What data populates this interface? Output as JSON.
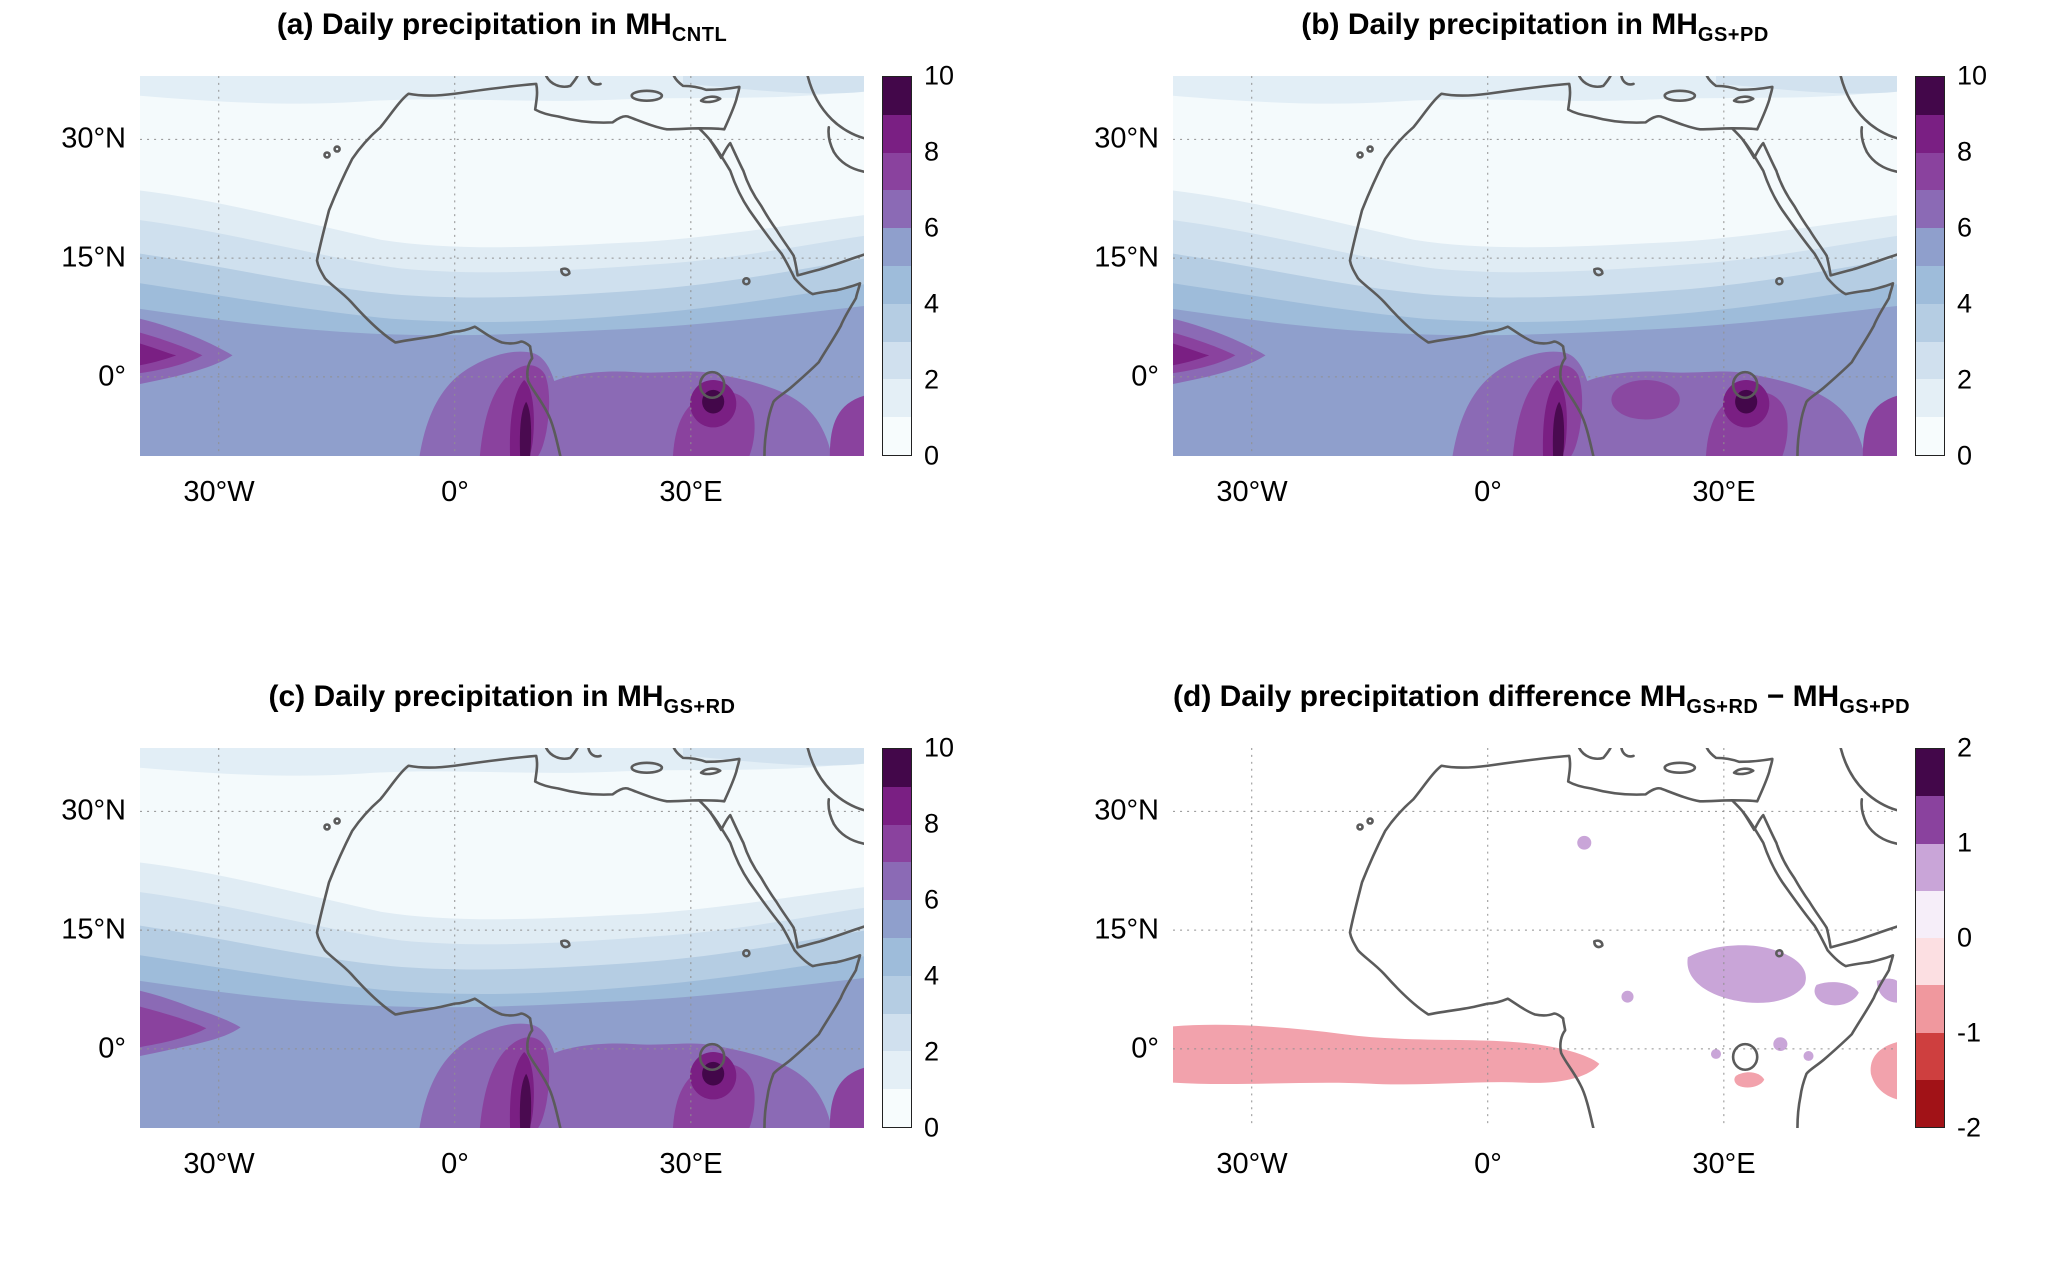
{
  "figure": {
    "background": "#ffffff"
  },
  "axes": {
    "lat_tick_labels": [
      "30°N",
      "15°N",
      "0°"
    ],
    "lon_tick_labels": [
      "30°W",
      "0°",
      "30°E"
    ]
  },
  "panels": {
    "a": {
      "title_main": "(a) Daily precipitation in MH",
      "title_sub": "CNTL"
    },
    "b": {
      "title_main": "(b) Daily precipitation in MH",
      "title_sub": "GS+PD"
    },
    "c": {
      "title_main": "(c) Daily precipitation in MH",
      "title_sub": "GS+RD"
    },
    "d": {
      "title_main": "(d) Daily precipitation difference MH",
      "title_sub": "GS+RD",
      "title_main2": " − MH",
      "title_sub2": "GS+PD"
    }
  },
  "colorbars": {
    "precip": {
      "tick_labels": [
        "0",
        "2",
        "4",
        "6",
        "8",
        "10"
      ],
      "range": [
        0,
        10
      ]
    },
    "diff": {
      "tick_labels": [
        "-2",
        "-1",
        "0",
        "1",
        "2"
      ],
      "range": [
        -2,
        2
      ]
    }
  },
  "colormaps": {
    "precip": [
      "#f7fcfd",
      "#e4eff6",
      "#d0e0ee",
      "#b5cde3",
      "#9ebcda",
      "#8f9fcc",
      "#8b6ab5",
      "#8a429e",
      "#7a1f83",
      "#43074a"
    ],
    "diff": [
      "#a11217",
      "#ce3f3f",
      "#f0989e",
      "#fcdfe2",
      "#f6eef9",
      "#c9a5d8",
      "#8a429e",
      "#43074a"
    ]
  },
  "map_style": {
    "coast_color": "#5b5b5b",
    "grid_color": "#909090"
  },
  "chart_data": [
    {
      "type": "heatmap",
      "panel": "a",
      "title": "(a) Daily precipitation in MH_CNTL",
      "x_ticks": [
        "30°W",
        "0°",
        "30°E"
      ],
      "y_ticks": [
        "30°N",
        "15°N",
        "0°"
      ],
      "approx_extent": {
        "lon": [
          -40,
          52
        ],
        "lat": [
          -10,
          38
        ]
      },
      "colorbar_range": [
        0,
        10
      ],
      "colorbar_ticks": [
        0,
        2,
        4,
        6,
        8,
        10
      ],
      "color_levels": [
        0,
        1,
        2,
        3,
        4,
        5,
        6,
        7,
        8,
        9,
        10
      ],
      "grid": "dotted at 0°, 15°N, 30°N and 30°W, 0°, 30°E",
      "features": [
        "values <1 over the Sahara, Mediterranean and subtropics north of ~18°N",
        "1–4 gradient southward across the Sahel (~8–18°N)",
        "4–6 band near 4–8°N from the Atlantic across West Africa",
        "6–10 maximum along the Gulf of Guinea coast near Cameroon (~10°E)",
        "8–10 maximum around Lake Victoria (~33°E, 0°)",
        "6–8 wedge at the western map edge near 2–7°N (Atlantic ITCZ)",
        "4–8 zonal band south of the equator"
      ]
    },
    {
      "type": "heatmap",
      "panel": "b",
      "title": "(b) Daily precipitation in MH_GS+PD",
      "x_ticks": [
        "30°W",
        "0°",
        "30°E"
      ],
      "y_ticks": [
        "30°N",
        "15°N",
        "0°"
      ],
      "approx_extent": {
        "lon": [
          -40,
          52
        ],
        "lat": [
          -10,
          38
        ]
      },
      "colorbar_range": [
        0,
        10
      ],
      "colorbar_ticks": [
        0,
        2,
        4,
        6,
        8,
        10
      ],
      "color_levels": [
        0,
        1,
        2,
        3,
        4,
        5,
        6,
        7,
        8,
        9,
        10
      ],
      "features": [
        "pattern very similar to (a)",
        "slightly broader 7–9 purple area along the equatorial band near 15–25°E",
        "dry Sahara (<1), wet Guinea coast and Lake Victoria maxima (8–10)"
      ]
    },
    {
      "type": "heatmap",
      "panel": "c",
      "title": "(c) Daily precipitation in MH_GS+RD",
      "x_ticks": [
        "30°W",
        "0°",
        "30°E"
      ],
      "y_ticks": [
        "30°N",
        "15°N",
        "0°"
      ],
      "approx_extent": {
        "lon": [
          -40,
          52
        ],
        "lat": [
          -10,
          38
        ]
      },
      "colorbar_range": [
        0,
        10
      ],
      "colorbar_ticks": [
        0,
        2,
        4,
        6,
        8,
        10
      ],
      "color_levels": [
        0,
        1,
        2,
        3,
        4,
        5,
        6,
        7,
        8,
        9,
        10
      ],
      "features": [
        "pattern very similar to (a)",
        "slightly stronger 6–8 wedge at the western (Atlantic) edge near 2–7°N",
        "dry Sahara (<1), wet Guinea coast and Lake Victoria maxima (8–10)"
      ]
    },
    {
      "type": "heatmap",
      "panel": "d",
      "title": "(d) Daily precipitation difference MH_GS+RD − MH_GS+PD",
      "x_ticks": [
        "30°W",
        "0°",
        "30°E"
      ],
      "y_ticks": [
        "30°N",
        "15°N",
        "0°"
      ],
      "approx_extent": {
        "lon": [
          -40,
          52
        ],
        "lat": [
          -10,
          38
        ]
      },
      "colorbar_range": [
        -2,
        2
      ],
      "colorbar_ticks": [
        -2,
        -1,
        0,
        1,
        2
      ],
      "color_levels": [
        -2,
        -1.5,
        -1,
        -0.5,
        0,
        0.5,
        1,
        1.5,
        2
      ],
      "features": [
        "mostly white: |difference| < 0.5 over most of the domain",
        "−1 to −0.5 (pink) band along the equator from the western edge to ~15°E",
        "−1 to −0.5 (pink) patch at the eastern map edge near 0–5°N",
        "0.5–1 (light purple) patches over ~20–35°E, 5–15°N (Sudan/Sahel)",
        "small 0.5–1 patches near 12°E 26°N and south of Ethiopia"
      ]
    }
  ]
}
